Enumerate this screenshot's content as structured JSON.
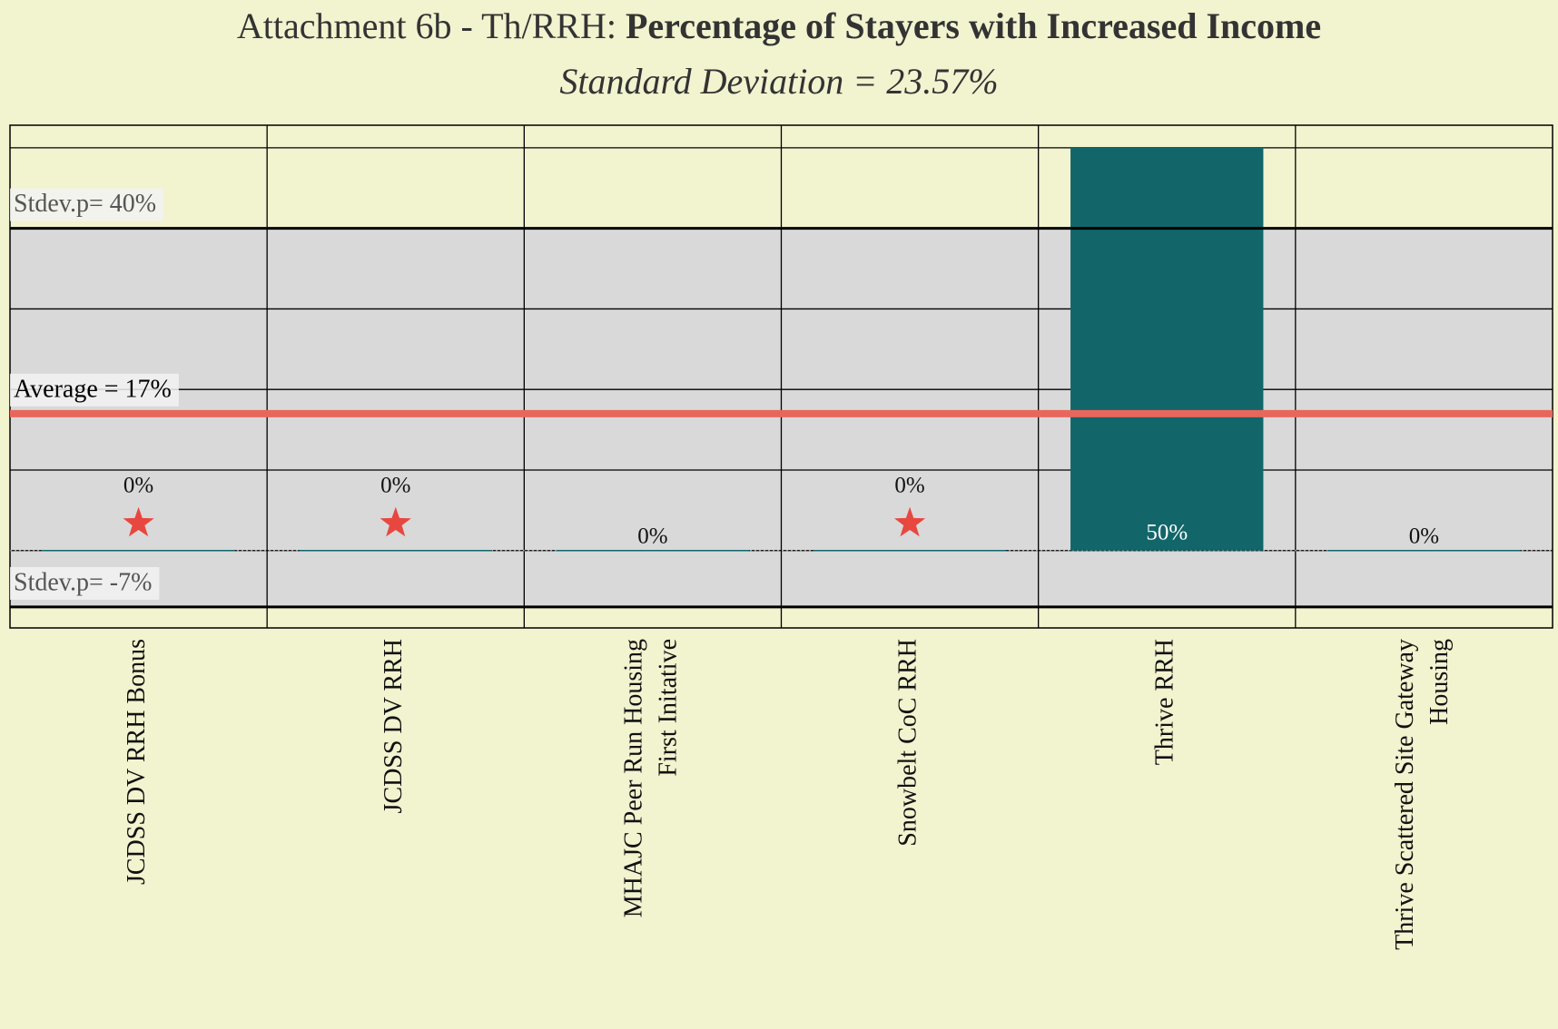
{
  "chart_data": {
    "type": "bar",
    "title": "Attachment 6b - Th/RRH: ",
    "title_bold": "Percentage of Stayers with Increased Income",
    "subtitle": "Standard Deviation = 23.57%",
    "categories": [
      [
        "JCDSS DV RRH Bonus"
      ],
      [
        "JCDSS DV RRH"
      ],
      [
        "MHAJC  Peer Run Housing",
        "First Initative"
      ],
      [
        "Snowbelt  CoC RRH"
      ],
      [
        "Thrive  RRH"
      ],
      [
        "Thrive  Scattered Site Gateway",
        "Housing"
      ]
    ],
    "values": [
      0,
      0,
      0,
      0,
      50,
      0
    ],
    "value_labels": [
      "0%",
      "0%",
      "0%",
      "0%",
      "50%",
      "0%"
    ],
    "stars": [
      true,
      true,
      false,
      true,
      false,
      false
    ],
    "color": "#126669",
    "star_color": "#e8473f",
    "ylim": [
      -9.6,
      52.8
    ],
    "yticks": [
      0,
      10,
      20,
      30,
      40,
      50
    ],
    "grid": true,
    "annotations": [
      {
        "label": "Stdev.p= 40%",
        "value": 40,
        "role": "upper"
      },
      {
        "label": "Average = 17%",
        "value": 17,
        "role": "average",
        "color": "#e8665c"
      },
      {
        "label": "Stdev.p= -7%",
        "value": -7,
        "role": "lower"
      }
    ],
    "band_color": "#d9d9d9"
  }
}
